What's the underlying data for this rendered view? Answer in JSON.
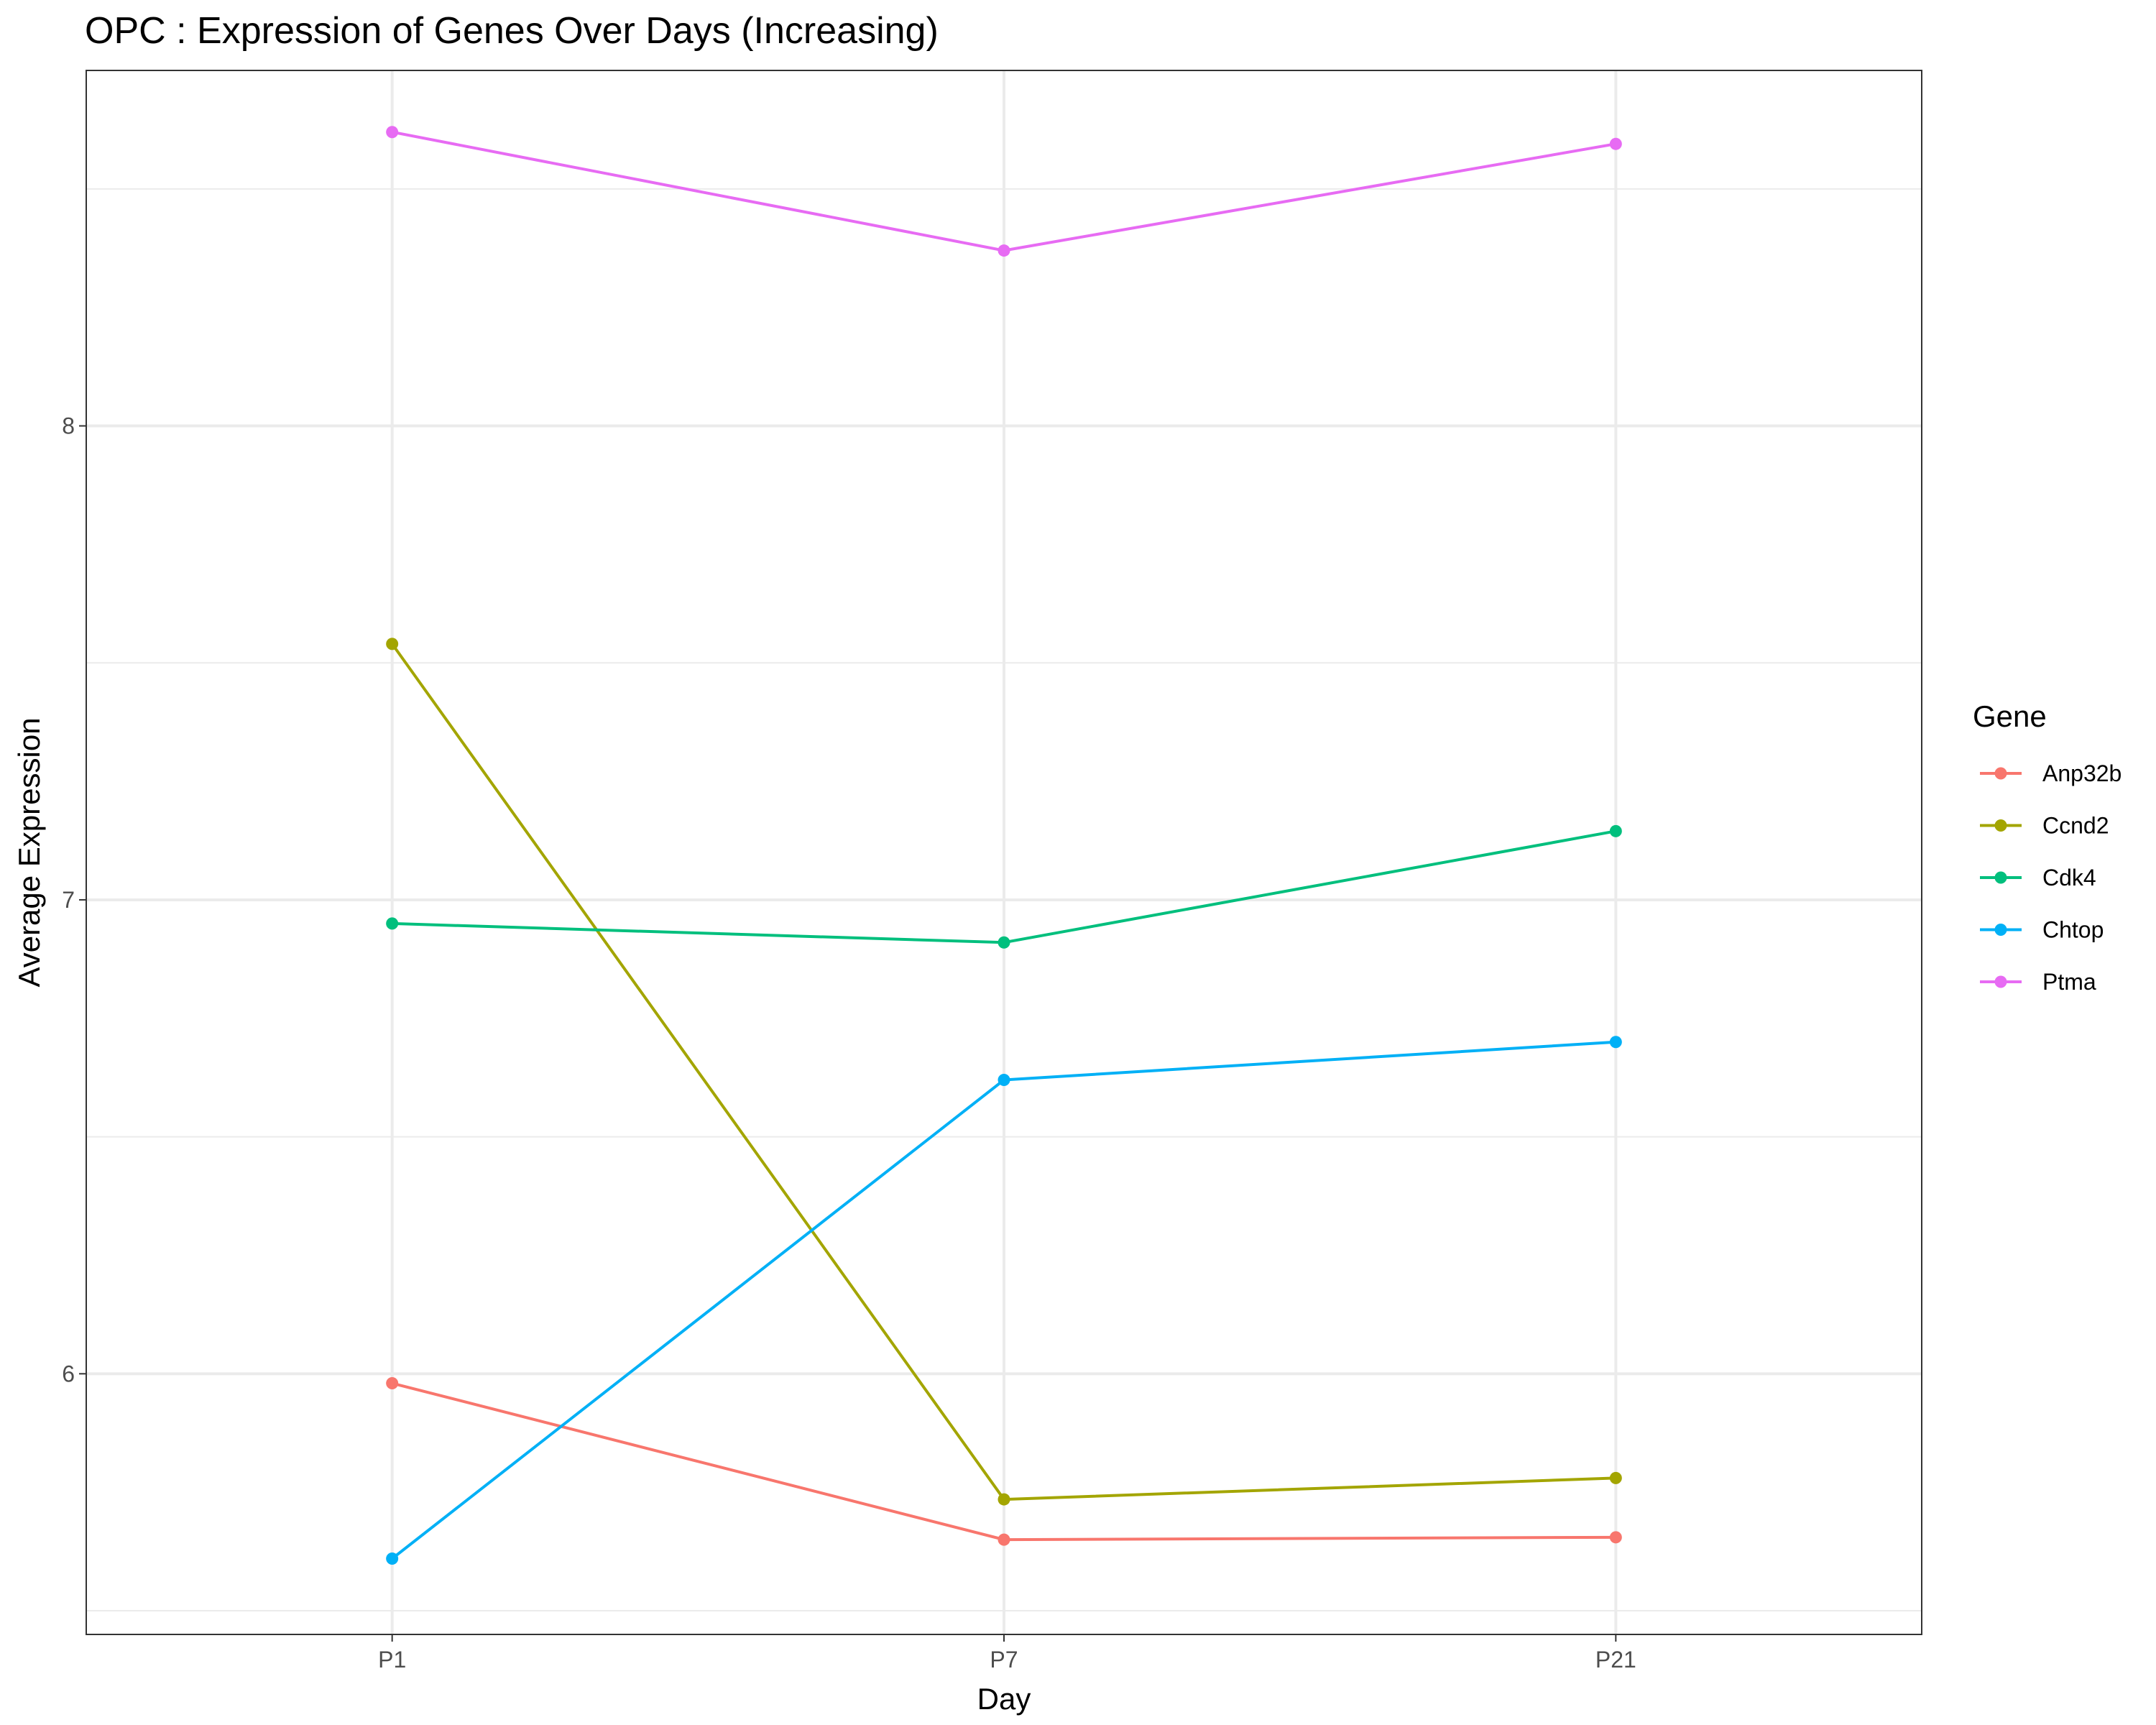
{
  "chart_data": {
    "type": "line",
    "title": "OPC : Expression of Genes Over Days (Increasing)",
    "xlabel": "Day",
    "ylabel": "Average Expression",
    "categories": [
      "P1",
      "P7",
      "P21"
    ],
    "ylim": [
      5.45,
      8.75
    ],
    "yticks": [
      6,
      7,
      8
    ],
    "y_minor_gridlines": [
      5.5,
      6.5,
      7.5,
      8.5
    ],
    "grid": true,
    "legend_title": "Gene",
    "legend_position": "right",
    "series": [
      {
        "name": "Anp32b",
        "color": "#F8766D",
        "values": [
          5.98,
          5.65,
          5.655
        ]
      },
      {
        "name": "Ccnd2",
        "color": "#A3A500",
        "values": [
          7.54,
          5.735,
          5.78
        ]
      },
      {
        "name": "Cdk4",
        "color": "#00BF7D",
        "values": [
          6.95,
          6.91,
          7.145
        ]
      },
      {
        "name": "Chtop",
        "color": "#00B0F6",
        "values": [
          5.61,
          6.62,
          6.7
        ]
      },
      {
        "name": "Ptma",
        "color": "#E76BF3",
        "values": [
          8.62,
          8.37,
          8.595
        ]
      }
    ]
  }
}
